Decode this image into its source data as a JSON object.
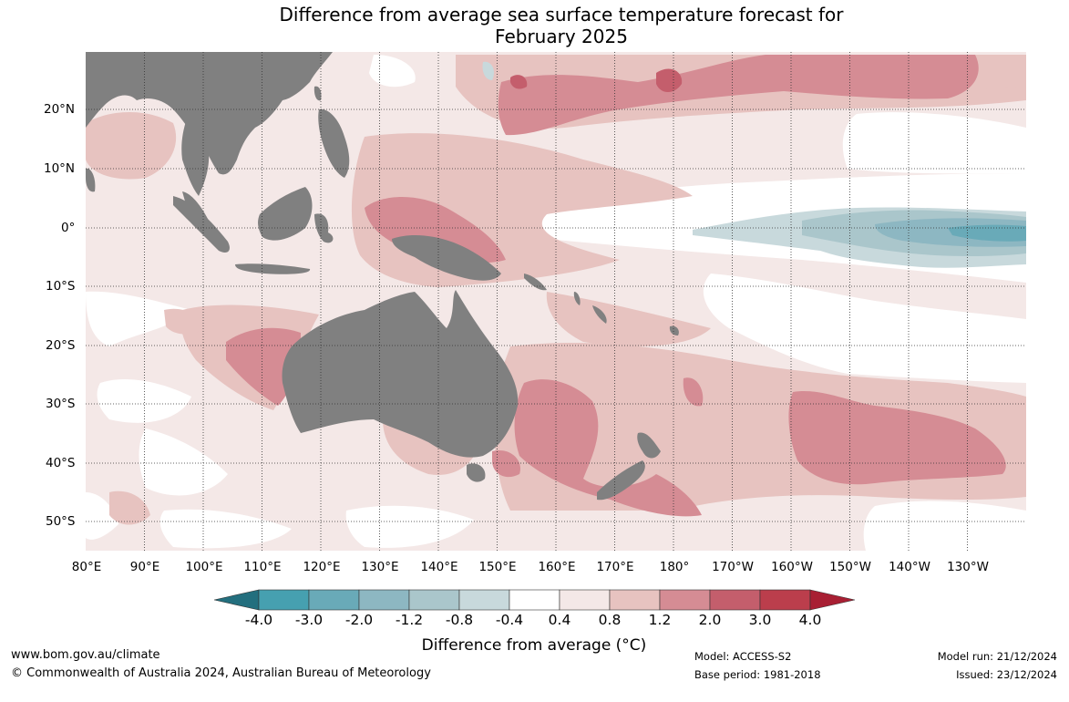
{
  "title": {
    "line1": "Difference from average sea surface temperature forecast for",
    "line2": "February 2025"
  },
  "map": {
    "lon_labels": [
      "80°E",
      "90°E",
      "100°E",
      "110°E",
      "120°E",
      "130°E",
      "140°E",
      "150°E",
      "160°E",
      "170°E",
      "180°",
      "170°W",
      "160°W",
      "150°W",
      "140°W",
      "130°W"
    ],
    "lat_labels": [
      "20°N",
      "10°N",
      "0°",
      "10°S",
      "20°S",
      "30°S",
      "40°S",
      "50°S"
    ],
    "land_color": "#808080",
    "gridline_style": "dotted"
  },
  "colorbar": {
    "ticks": [
      "-4.0",
      "-3.0",
      "-2.0",
      "-1.2",
      "-0.8",
      "-0.4",
      "0.4",
      "0.8",
      "1.2",
      "2.0",
      "3.0",
      "4.0"
    ],
    "colors": [
      "#236f7e",
      "#46a0b0",
      "#69aab8",
      "#8db7c2",
      "#aac6cb",
      "#c8d9dc",
      "#ffffff",
      "#f4e8e7",
      "#e7c3c0",
      "#d58c94",
      "#c45e6c",
      "#bb3e4c",
      "#a81f33"
    ],
    "label": "Difference from average (°C)"
  },
  "footer": {
    "url": "www.bom.gov.au/climate",
    "copyright": "© Commonwealth of Australia 2024, Australian Bureau of Meteorology",
    "model": "Model: ACCESS-S2",
    "base_period": "Base period: 1981-2018",
    "model_run": "Model run: 21/12/2024",
    "issued": "Issued: 23/12/2024"
  }
}
